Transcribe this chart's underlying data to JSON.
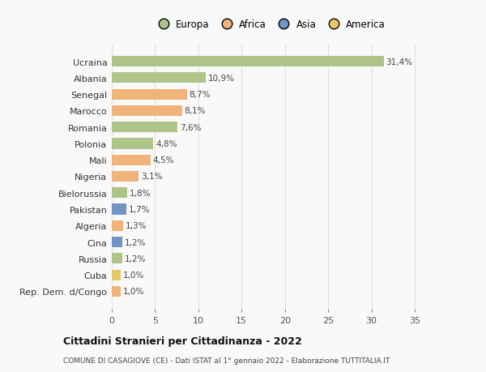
{
  "categories": [
    "Rep. Dem. d/Congo",
    "Cuba",
    "Russia",
    "Cina",
    "Algeria",
    "Pakistan",
    "Bielorussia",
    "Nigeria",
    "Mali",
    "Polonia",
    "Romania",
    "Marocco",
    "Senegal",
    "Albania",
    "Ucraina"
  ],
  "values": [
    1.0,
    1.0,
    1.2,
    1.2,
    1.3,
    1.7,
    1.8,
    3.1,
    4.5,
    4.8,
    7.6,
    8.1,
    8.7,
    10.9,
    31.4
  ],
  "labels": [
    "1,0%",
    "1,0%",
    "1,2%",
    "1,2%",
    "1,3%",
    "1,7%",
    "1,8%",
    "3,1%",
    "4,5%",
    "4,8%",
    "7,6%",
    "8,1%",
    "8,7%",
    "10,9%",
    "31,4%"
  ],
  "colors": [
    "#f0b37a",
    "#e8c96a",
    "#afc488",
    "#7094c8",
    "#f0b37a",
    "#7094c8",
    "#afc488",
    "#f0b37a",
    "#f0b37a",
    "#afc488",
    "#afc488",
    "#f0b37a",
    "#f0b37a",
    "#afc488",
    "#afc488"
  ],
  "legend_labels": [
    "Europa",
    "Africa",
    "Asia",
    "America"
  ],
  "legend_colors": [
    "#afc488",
    "#f0b37a",
    "#7094c8",
    "#e8c96a"
  ],
  "title": "Cittadini Stranieri per Cittadinanza - 2022",
  "subtitle": "COMUNE DI CASAGIOVE (CE) - Dati ISTAT al 1° gennaio 2022 - Elaborazione TUTTITALIA.IT",
  "xlabel_ticks": [
    0,
    5,
    10,
    15,
    20,
    25,
    30,
    35
  ],
  "xlim": [
    0,
    36.5
  ],
  "background_color": "#f9f9f9",
  "grid_color": "#e0e0e0",
  "bar_height": 0.65
}
